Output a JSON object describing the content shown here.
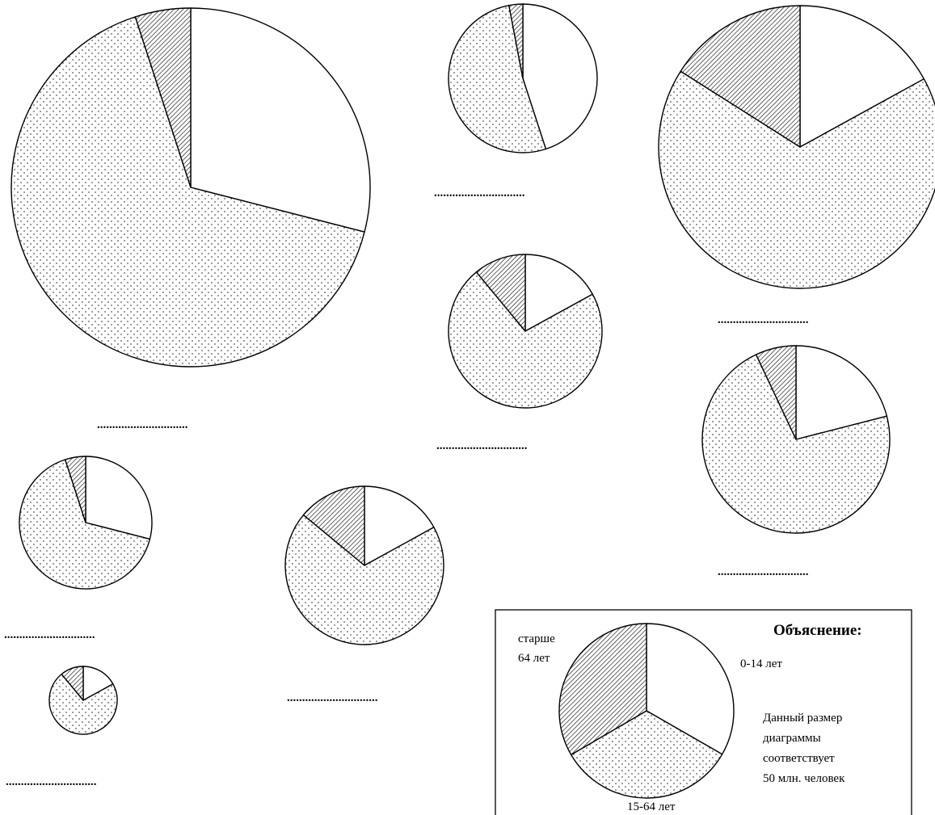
{
  "legend": {
    "title": "Объяснение:",
    "label_young": "0-14 лет",
    "label_working": "15-64 лет",
    "label_old_line1": "старше",
    "label_old_line2": "64 лет",
    "note_line1": "Данный размер",
    "note_line2": "диаграммы",
    "note_line3": "соответствует",
    "note_line4": "50 млн. человек"
  },
  "chart_data": {
    "type": "pie",
    "title": "",
    "categories": [
      "0-14 лет",
      "15-64 лет",
      "старше 64 лет"
    ],
    "pattern_by_category": [
      "blank",
      "dots",
      "hatch"
    ],
    "size_reference": {
      "population_mln": 50,
      "note": "legend pie size corresponds to 50 million people"
    },
    "blank_label": "..............................",
    "pies": [
      {
        "id": "pie-1",
        "shares_percent": [
          29,
          66,
          5
        ]
      },
      {
        "id": "pie-2",
        "shares_percent": [
          45,
          52,
          3
        ]
      },
      {
        "id": "pie-3",
        "shares_percent": [
          17,
          67,
          16
        ]
      },
      {
        "id": "pie-4",
        "shares_percent": [
          17,
          72,
          11
        ]
      },
      {
        "id": "pie-5",
        "shares_percent": [
          21,
          72,
          7
        ]
      },
      {
        "id": "pie-6",
        "shares_percent": [
          29,
          66,
          5
        ]
      },
      {
        "id": "pie-7",
        "shares_percent": [
          17,
          69,
          14
        ]
      },
      {
        "id": "pie-8",
        "shares_percent": [
          17,
          72,
          11
        ]
      },
      {
        "id": "legend-pie",
        "shares_percent": [
          33.3,
          33.3,
          33.4
        ]
      }
    ]
  }
}
